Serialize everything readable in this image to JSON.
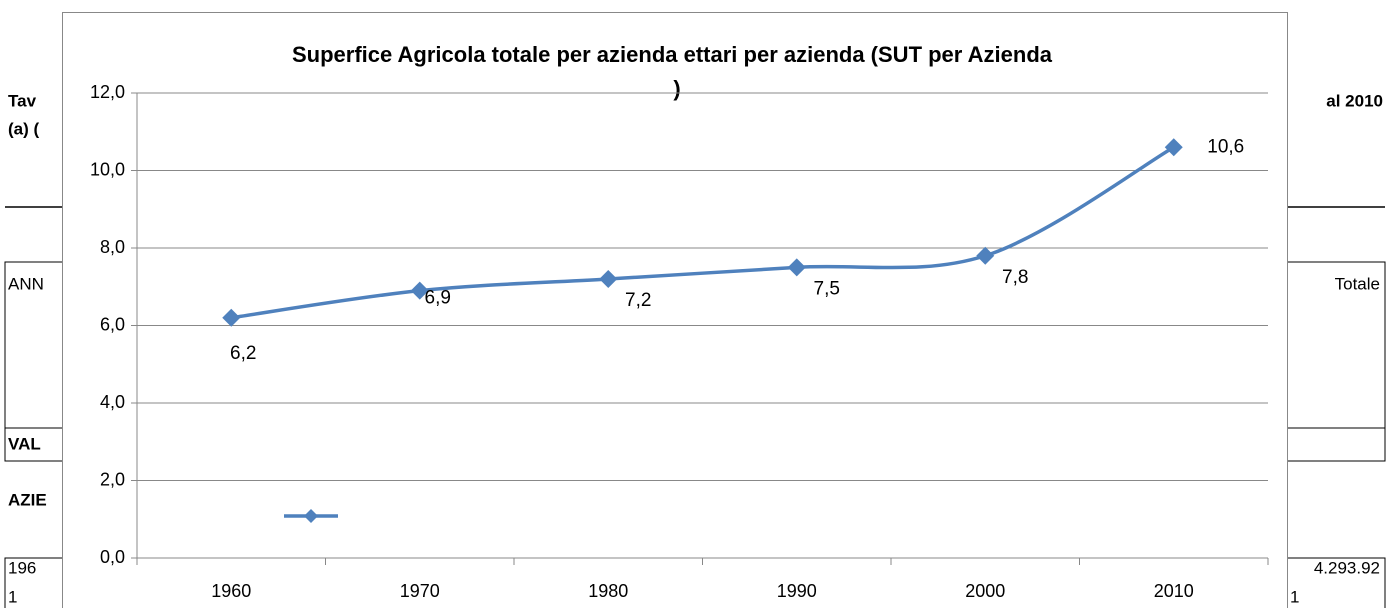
{
  "document": {
    "heading_lines": [
      "Tav",
      "(a) (",
      "al 2010"
    ],
    "table_header": [
      "ANN",
      "Totale"
    ],
    "row_label": "VAL",
    "section": "AZIE",
    "row": [
      "196",
      "1",
      "4.293.92",
      "1"
    ]
  },
  "chart_data": {
    "type": "line",
    "title": [
      "Superfice Agricola totale per azienda ettari per azienda (SUT per Azienda",
      ")"
    ],
    "categories": [
      "1960",
      "1970",
      "1980",
      "1990",
      "2000",
      "2010"
    ],
    "series": [
      {
        "color": "#4f81bd",
        "values": [
          6.2,
          6.9,
          7.2,
          7.5,
          7.8,
          10.6
        ],
        "value_labels": [
          "6,2",
          "6,9",
          "7,2",
          "7,5",
          "7,8",
          "10,6"
        ]
      }
    ],
    "ylim": [
      0,
      12
    ],
    "yticks": [
      {
        "value": 0,
        "label": "0,0"
      },
      {
        "value": 2,
        "label": "2,0"
      },
      {
        "value": 4,
        "label": "4,0"
      },
      {
        "value": 6,
        "label": "6,0"
      },
      {
        "value": 8,
        "label": "8,0"
      },
      {
        "value": 10,
        "label": "10,0"
      },
      {
        "value": 12,
        "label": "12,0"
      }
    ],
    "grid": true,
    "smooth": true
  }
}
